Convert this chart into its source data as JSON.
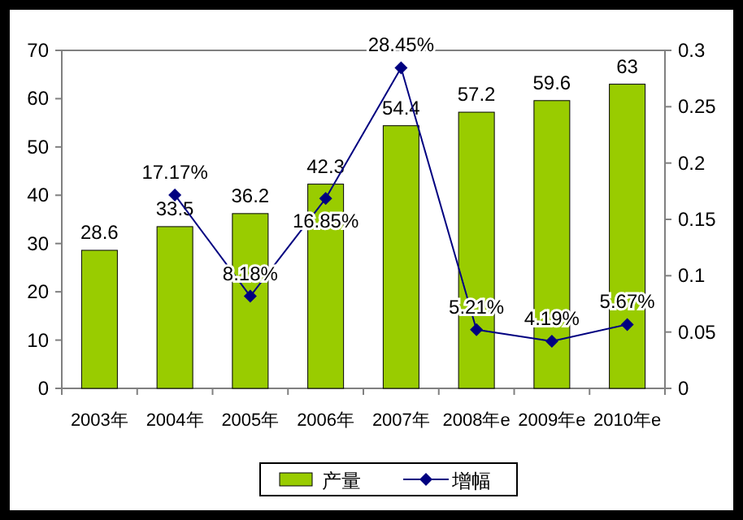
{
  "chart_data": {
    "type": "bar",
    "categories": [
      "2003年",
      "2004年",
      "2005年",
      "2006年",
      "2007年",
      "2008年e",
      "2009年e",
      "2010年e"
    ],
    "series": [
      {
        "name": "产量",
        "color": "#99cc00",
        "values": [
          28.6,
          33.5,
          36.2,
          42.3,
          54.4,
          57.2,
          59.6,
          63
        ],
        "data_labels": true
      },
      {
        "name": "增幅",
        "type": "line",
        "axis": "y2",
        "color": "#000080",
        "marker": "diamond",
        "values": [
          null,
          0.1717,
          0.0818,
          0.1685,
          0.2845,
          0.0521,
          0.0419,
          0.0567
        ],
        "value_labels": [
          null,
          "17.17%",
          "8.18%",
          "16.85%",
          "28.45%",
          "5.21%",
          "4.19%",
          "5.67%"
        ]
      }
    ],
    "ylim": [
      0,
      70
    ],
    "yticks": [
      0,
      10,
      20,
      30,
      40,
      50,
      60,
      70
    ],
    "y2lim": [
      0,
      0.3
    ],
    "y2ticks": [
      0,
      0.05,
      0.1,
      0.15,
      0.2,
      0.25,
      0.3
    ],
    "legend": "bottom",
    "grid": false
  }
}
